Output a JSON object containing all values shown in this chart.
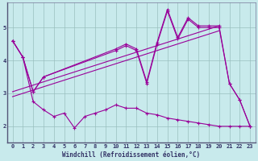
{
  "xlabel": "Windchill (Refroidissement éolien,°C)",
  "bg_color": "#c8eaec",
  "line_color": "#990099",
  "grid_color": "#9abfbf",
  "axis_color": "#333366",
  "xlim": [
    -0.5,
    23.5
  ],
  "ylim": [
    1.5,
    5.75
  ],
  "xticks": [
    0,
    1,
    2,
    3,
    4,
    5,
    6,
    7,
    8,
    9,
    10,
    11,
    12,
    13,
    14,
    15,
    16,
    17,
    18,
    19,
    20,
    21,
    22,
    23
  ],
  "yticks": [
    2,
    3,
    4,
    5
  ],
  "series1": {
    "x": [
      0,
      1,
      2,
      3,
      10,
      11,
      12,
      13,
      14,
      15,
      16,
      17,
      18,
      19,
      20,
      21,
      22,
      23
    ],
    "y": [
      4.6,
      4.1,
      3.05,
      3.5,
      4.35,
      4.5,
      4.35,
      3.35,
      4.55,
      5.55,
      4.7,
      5.3,
      5.05,
      5.05,
      5.05,
      3.3,
      2.8,
      2.0
    ]
  },
  "series2": {
    "x": [
      0,
      1,
      2,
      3,
      10,
      11,
      12,
      13,
      14,
      15,
      16,
      17,
      18,
      19,
      20,
      21,
      22,
      23
    ],
    "y": [
      4.6,
      4.1,
      3.05,
      3.5,
      4.3,
      4.45,
      4.3,
      3.3,
      4.5,
      5.5,
      4.65,
      5.25,
      5.0,
      5.0,
      5.0,
      3.3,
      2.8,
      2.0
    ]
  },
  "series3": {
    "x": [
      0,
      1,
      2,
      3,
      4,
      5,
      6,
      7,
      8,
      9,
      10,
      11,
      12,
      13,
      14,
      15,
      16,
      17,
      18,
      19,
      20,
      21,
      22,
      23
    ],
    "y": [
      4.6,
      4.1,
      2.75,
      2.5,
      2.3,
      2.4,
      1.95,
      2.3,
      2.4,
      2.5,
      2.65,
      2.55,
      2.55,
      2.4,
      2.35,
      2.25,
      2.2,
      2.15,
      2.1,
      2.05,
      2.0,
      2.0,
      2.0,
      2.0
    ]
  },
  "trend1": {
    "x": [
      0,
      20
    ],
    "y": [
      3.05,
      5.05
    ]
  },
  "trend2": {
    "x": [
      0,
      20
    ],
    "y": [
      2.9,
      4.9
    ]
  }
}
